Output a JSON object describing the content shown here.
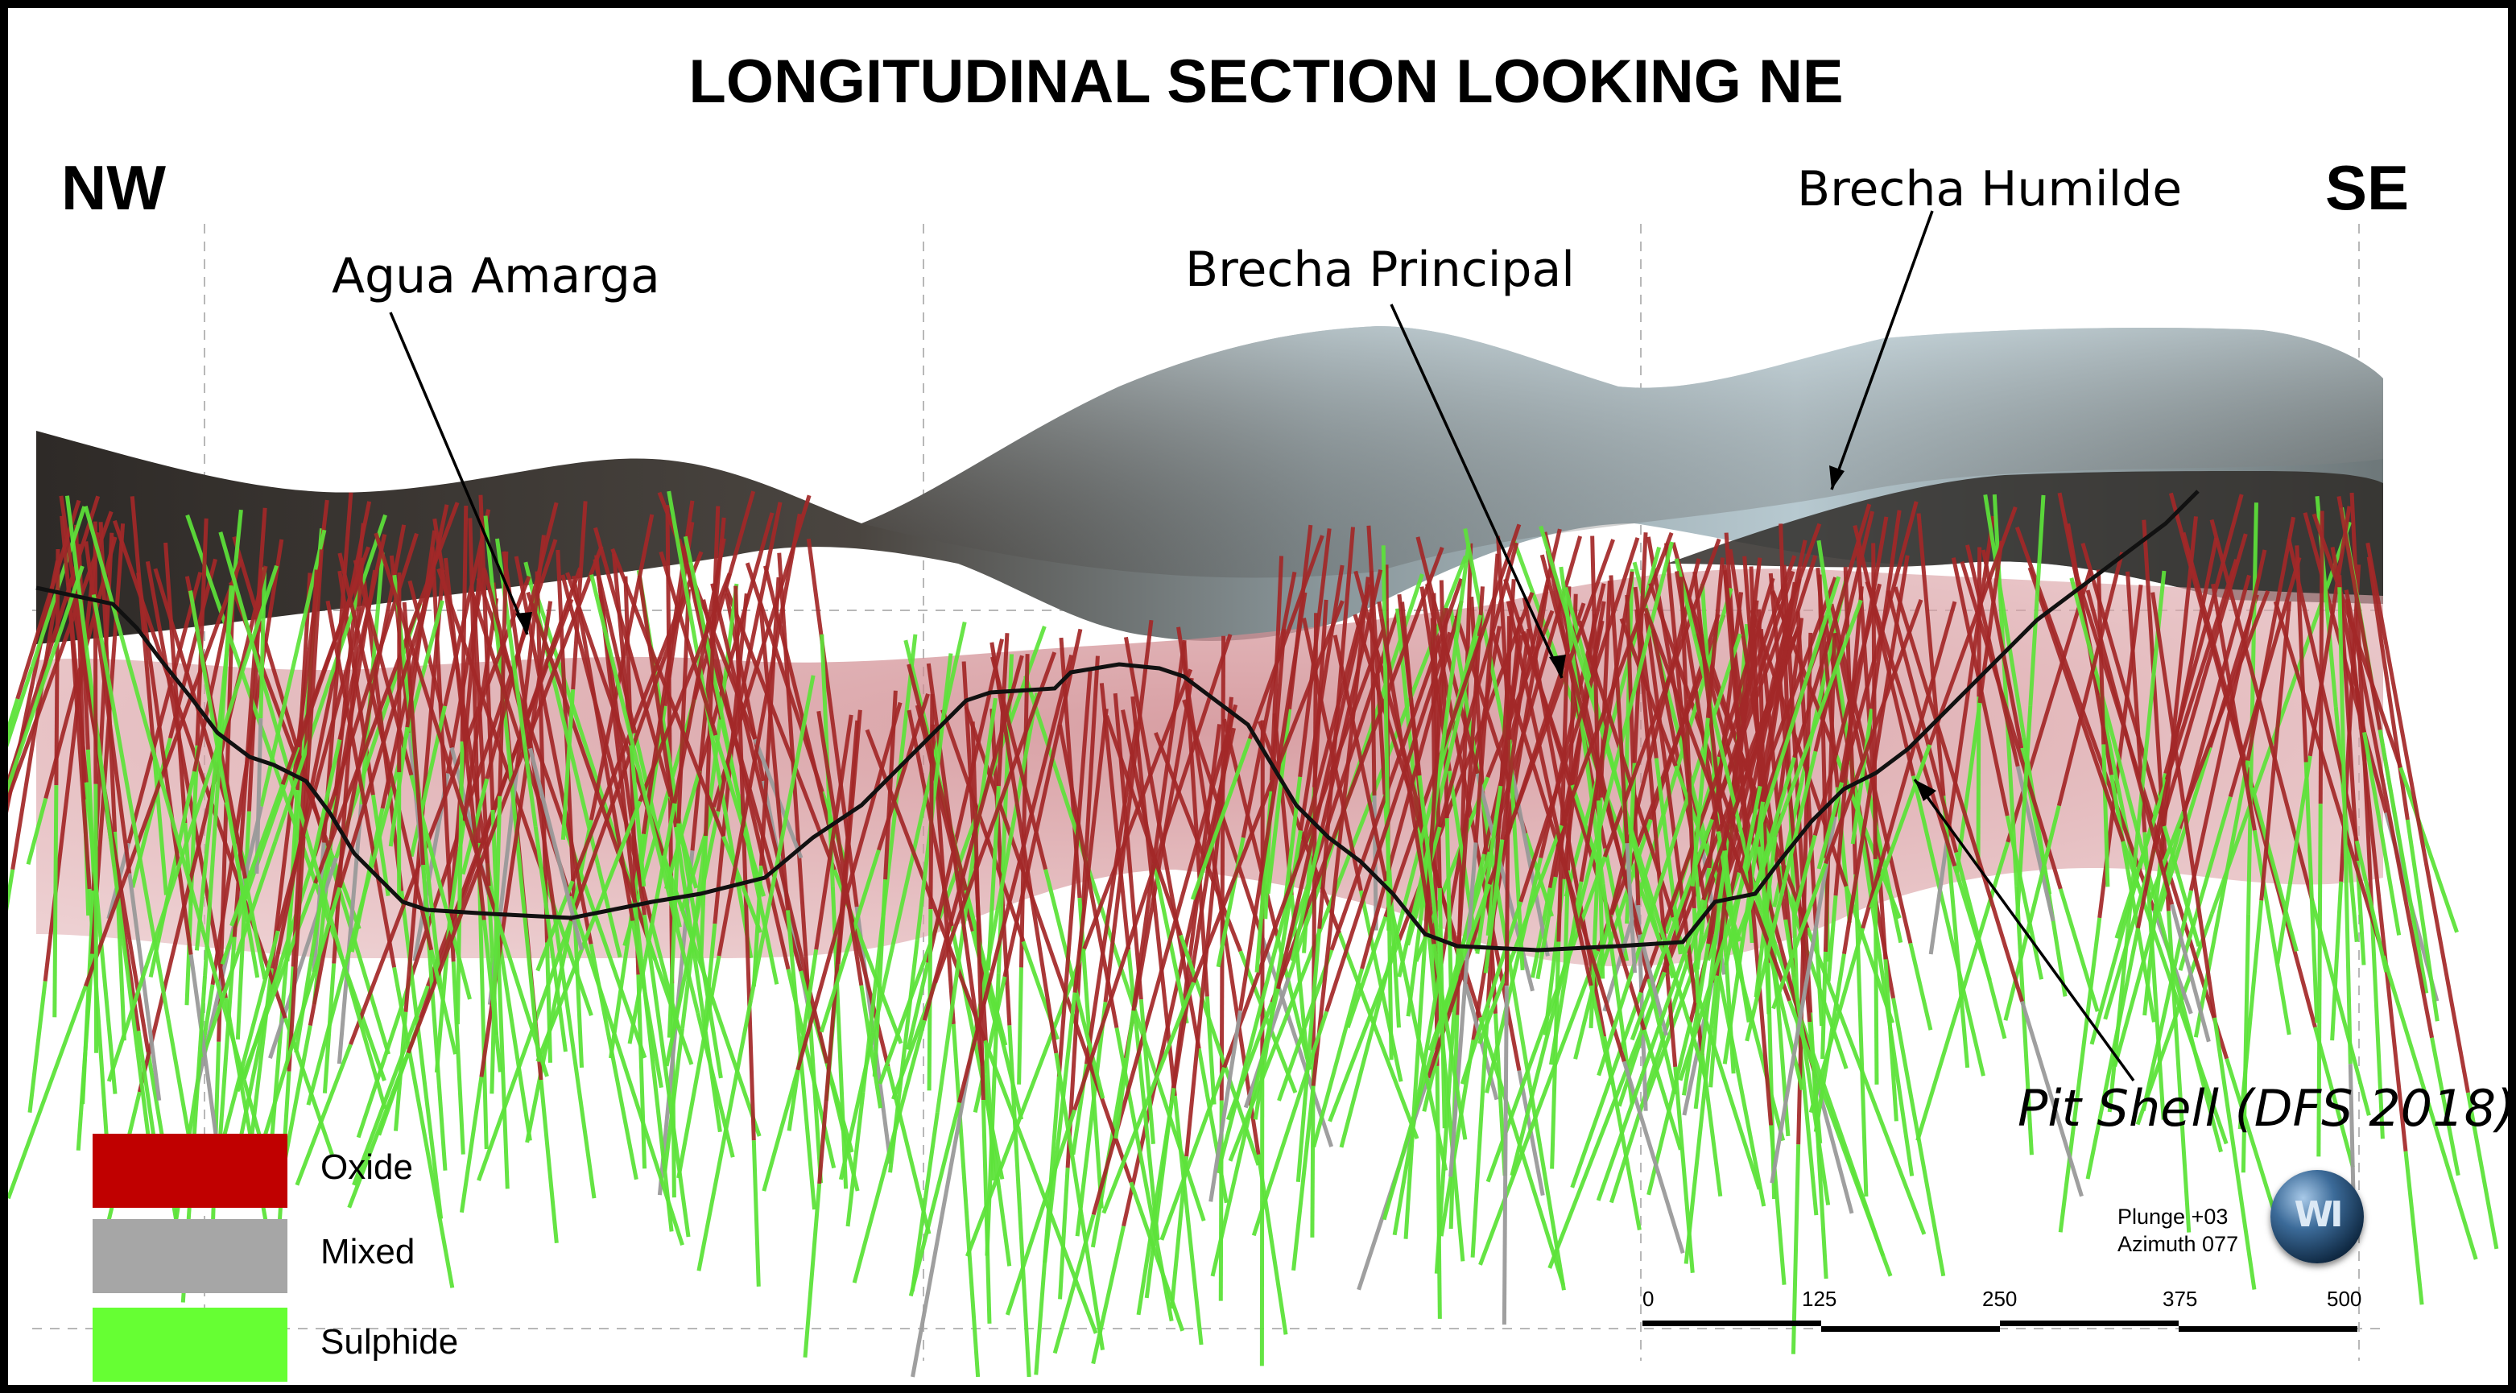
{
  "title": "LONGITUDINAL SECTION LOOKING NE",
  "orientation": {
    "left": "NW",
    "right": "SE"
  },
  "callouts": {
    "agua_amarga": "Agua Amarga",
    "brecha_principal": "Brecha Principal",
    "brecha_humilde": "Brecha Humilde",
    "pit_shell": "Pit Shell (DFS 2018)"
  },
  "legend": [
    {
      "label": "Oxide",
      "color": "#c00000"
    },
    {
      "label": "Mixed",
      "color": "#a6a6a6"
    },
    {
      "label": "Sulphide",
      "color": "#66ff33"
    }
  ],
  "view": {
    "plunge": "Plunge +03",
    "azimuth": "Azimuth 077"
  },
  "scale_bar": {
    "ticks": [
      "0",
      "125",
      "250",
      "375",
      "500"
    ]
  },
  "logo_text": "WI",
  "colors": {
    "oxide": "#a32828",
    "sulphide": "#5de33a",
    "mixed": "#9a9a9a",
    "terrain_dark": "#3b3632",
    "terrain_light": "#9fb4be",
    "orebody": "#d9a0a4"
  }
}
